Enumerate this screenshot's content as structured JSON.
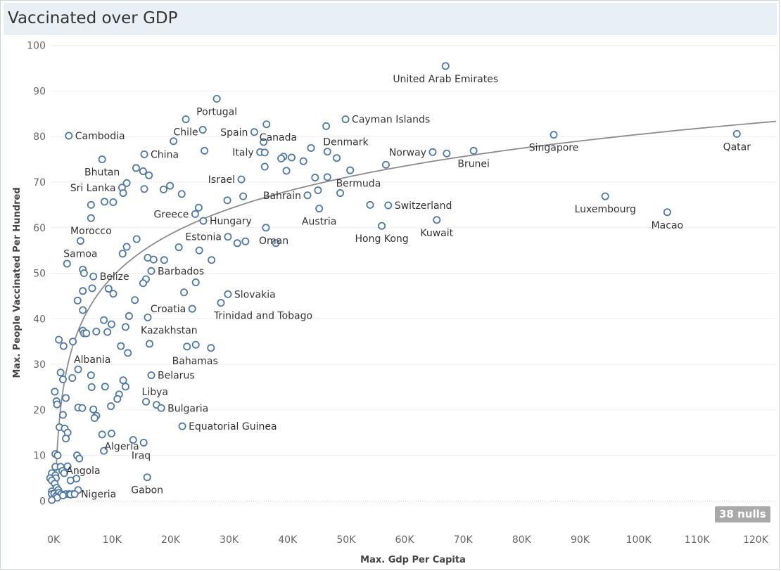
{
  "title": "Vaccinated over GDP",
  "nulls_badge": "38 nulls",
  "chart_data": {
    "type": "scatter",
    "xlabel": "Max. Gdp Per Capita",
    "ylabel": "Max. People Vaccinated Per Hundred",
    "xlim": [
      -500,
      123500
    ],
    "ylim": [
      -5.5,
      101.5
    ],
    "x_ticks": [
      0,
      10000,
      20000,
      30000,
      40000,
      50000,
      60000,
      70000,
      80000,
      90000,
      100000,
      110000,
      120000
    ],
    "x_tick_labels": [
      "0K",
      "10K",
      "20K",
      "30K",
      "40K",
      "50K",
      "60K",
      "70K",
      "80K",
      "90K",
      "100K",
      "110K",
      "120K"
    ],
    "y_ticks": [
      0,
      10,
      20,
      30,
      40,
      50,
      60,
      70,
      80,
      90,
      100
    ],
    "y_tick_labels": [
      "0",
      "10",
      "20",
      "30",
      "40",
      "50",
      "60",
      "70",
      "80",
      "90",
      "100"
    ],
    "trend_line": {
      "type": "logarithmic",
      "a": -76.1,
      "b": 13.6
    },
    "points": [
      {
        "x": 67000,
        "y": 95.5,
        "label": "United Arab Emirates",
        "label_pos": "below"
      },
      {
        "x": 116800,
        "y": 80.6,
        "label": "Qatar",
        "label_pos": "below"
      },
      {
        "x": 85500,
        "y": 80.4,
        "label": "Singapore",
        "label_pos": "below"
      },
      {
        "x": 71800,
        "y": 76.9,
        "label": "Brunei",
        "label_pos": "below"
      },
      {
        "x": 67200,
        "y": 76.3
      },
      {
        "x": 64800,
        "y": 76.6,
        "label": "Norway",
        "label_pos": "left"
      },
      {
        "x": 94300,
        "y": 66.9,
        "label": "Luxembourg",
        "label_pos": "below"
      },
      {
        "x": 104900,
        "y": 63.4,
        "label": "Macao",
        "label_pos": "below"
      },
      {
        "x": 57200,
        "y": 64.9,
        "label": "Switzerland",
        "label_pos": "right"
      },
      {
        "x": 65500,
        "y": 61.7,
        "label": "Kuwait",
        "label_pos": "below"
      },
      {
        "x": 56100,
        "y": 60.4,
        "label": "Hong Kong",
        "label_pos": "below"
      },
      {
        "x": 54100,
        "y": 65.0
      },
      {
        "x": 56800,
        "y": 73.8
      },
      {
        "x": 49900,
        "y": 83.8,
        "label": "Cayman Islands",
        "label_pos": "right"
      },
      {
        "x": 46600,
        "y": 82.3
      },
      {
        "x": 46800,
        "y": 76.7,
        "label": "Denmark",
        "label_pos": "above-right"
      },
      {
        "x": 48400,
        "y": 75.3
      },
      {
        "x": 50700,
        "y": 72.6
      },
      {
        "x": 46800,
        "y": 71.1
      },
      {
        "x": 44700,
        "y": 71.0
      },
      {
        "x": 49000,
        "y": 67.6,
        "label": "Bermuda",
        "label_pos": "above-right"
      },
      {
        "x": 45200,
        "y": 68.2
      },
      {
        "x": 43400,
        "y": 67.1,
        "label": "Bahrain",
        "label_pos": "left"
      },
      {
        "x": 45400,
        "y": 64.2,
        "label": "Austria",
        "label_pos": "below"
      },
      {
        "x": 44000,
        "y": 77.5
      },
      {
        "x": 42700,
        "y": 74.6
      },
      {
        "x": 40700,
        "y": 75.4
      },
      {
        "x": 39300,
        "y": 75.6
      },
      {
        "x": 38900,
        "y": 75.2
      },
      {
        "x": 39800,
        "y": 72.5
      },
      {
        "x": 36400,
        "y": 82.7,
        "label": "Canada",
        "label_pos": "below-right"
      },
      {
        "x": 34300,
        "y": 81.0,
        "label": "Spain",
        "label_pos": "left"
      },
      {
        "x": 35900,
        "y": 78.8
      },
      {
        "x": 35300,
        "y": 76.6,
        "label": "Italy",
        "label_pos": "left"
      },
      {
        "x": 36100,
        "y": 76.5
      },
      {
        "x": 36100,
        "y": 73.4
      },
      {
        "x": 32100,
        "y": 70.6,
        "label": "Israel",
        "label_pos": "left"
      },
      {
        "x": 32400,
        "y": 66.9
      },
      {
        "x": 29700,
        "y": 66.0
      },
      {
        "x": 36300,
        "y": 60.0,
        "label": "Oman",
        "label_pos": "below-right"
      },
      {
        "x": 38000,
        "y": 56.6
      },
      {
        "x": 32800,
        "y": 57.0
      },
      {
        "x": 31400,
        "y": 56.6
      },
      {
        "x": 29800,
        "y": 58.0,
        "label": "Estonia",
        "label_pos": "left"
      },
      {
        "x": 25600,
        "y": 61.5,
        "label": "Hungary",
        "label_pos": "right"
      },
      {
        "x": 27900,
        "y": 88.3,
        "label": "Portugal",
        "label_pos": "below"
      },
      {
        "x": 22600,
        "y": 83.8,
        "label": "Chile",
        "label_pos": "below"
      },
      {
        "x": 25500,
        "y": 81.5
      },
      {
        "x": 20500,
        "y": 79.0
      },
      {
        "x": 25800,
        "y": 76.9
      },
      {
        "x": 15500,
        "y": 76.1,
        "label": "China",
        "label_pos": "right"
      },
      {
        "x": 2600,
        "y": 80.2,
        "label": "Cambodia",
        "label_pos": "right"
      },
      {
        "x": 8300,
        "y": 75.0,
        "label": "Bhutan",
        "label_pos": "below"
      },
      {
        "x": 14100,
        "y": 73.1
      },
      {
        "x": 15300,
        "y": 72.4
      },
      {
        "x": 16300,
        "y": 71.5
      },
      {
        "x": 11700,
        "y": 68.8,
        "label": "Sri Lanka",
        "label_pos": "left"
      },
      {
        "x": 11900,
        "y": 67.6
      },
      {
        "x": 12500,
        "y": 69.8
      },
      {
        "x": 15500,
        "y": 68.5
      },
      {
        "x": 18800,
        "y": 68.4
      },
      {
        "x": 19900,
        "y": 69.2
      },
      {
        "x": 21900,
        "y": 67.4
      },
      {
        "x": 8700,
        "y": 65.7
      },
      {
        "x": 10200,
        "y": 65.6
      },
      {
        "x": 6400,
        "y": 65.0
      },
      {
        "x": 24800,
        "y": 64.4
      },
      {
        "x": 24200,
        "y": 63.0,
        "label": "Greece",
        "label_pos": "left"
      },
      {
        "x": 6400,
        "y": 62.1,
        "label": "Morocco",
        "label_pos": "below"
      },
      {
        "x": 4600,
        "y": 57.1,
        "label": "Samoa",
        "label_pos": "below"
      },
      {
        "x": 14200,
        "y": 57.5
      },
      {
        "x": 12500,
        "y": 55.8
      },
      {
        "x": 11800,
        "y": 54.3
      },
      {
        "x": 21400,
        "y": 55.7
      },
      {
        "x": 24900,
        "y": 55.0
      },
      {
        "x": 16100,
        "y": 53.4
      },
      {
        "x": 17100,
        "y": 53.0
      },
      {
        "x": 18900,
        "y": 52.9
      },
      {
        "x": 27000,
        "y": 52.9
      },
      {
        "x": 2300,
        "y": 52.1
      },
      {
        "x": 5000,
        "y": 50.8
      },
      {
        "x": 5200,
        "y": 50.0
      },
      {
        "x": 6800,
        "y": 49.3,
        "label": "Belize",
        "label_pos": "right"
      },
      {
        "x": 16700,
        "y": 50.5,
        "label": "Barbados",
        "label_pos": "right"
      },
      {
        "x": 15800,
        "y": 48.7
      },
      {
        "x": 15300,
        "y": 47.8
      },
      {
        "x": 24300,
        "y": 48.0
      },
      {
        "x": 6600,
        "y": 46.7
      },
      {
        "x": 5000,
        "y": 46.1
      },
      {
        "x": 9400,
        "y": 46.6
      },
      {
        "x": 10200,
        "y": 45.5
      },
      {
        "x": 22300,
        "y": 45.8
      },
      {
        "x": 29800,
        "y": 45.4,
        "label": "Slovakia",
        "label_pos": "right"
      },
      {
        "x": 28600,
        "y": 43.5,
        "label": "Trinidad and Tobago",
        "label_pos": "below-right"
      },
      {
        "x": 23700,
        "y": 42.2,
        "label": "Croatia",
        "label_pos": "left"
      },
      {
        "x": 4100,
        "y": 44.0
      },
      {
        "x": 13900,
        "y": 44.1
      },
      {
        "x": 5000,
        "y": 41.9
      },
      {
        "x": 16100,
        "y": 40.3,
        "label": "Kazakhstan",
        "label_pos": "below-right"
      },
      {
        "x": 12900,
        "y": 40.6
      },
      {
        "x": 8600,
        "y": 39.7
      },
      {
        "x": 9900,
        "y": 38.8
      },
      {
        "x": 12300,
        "y": 38.2
      },
      {
        "x": 5000,
        "y": 37.4
      },
      {
        "x": 7300,
        "y": 37.2
      },
      {
        "x": 5200,
        "y": 36.8
      },
      {
        "x": 5600,
        "y": 36.8
      },
      {
        "x": 9200,
        "y": 37.1
      },
      {
        "x": 900,
        "y": 35.4
      },
      {
        "x": 3300,
        "y": 35.0
      },
      {
        "x": 1700,
        "y": 34.0
      },
      {
        "x": 11500,
        "y": 34.0
      },
      {
        "x": 16400,
        "y": 34.5
      },
      {
        "x": 22800,
        "y": 33.9
      },
      {
        "x": 24300,
        "y": 34.3
      },
      {
        "x": 26900,
        "y": 33.6,
        "label": "Bahamas",
        "label_pos": "below-left"
      },
      {
        "x": 12700,
        "y": 32.5
      },
      {
        "x": 4200,
        "y": 28.9,
        "label": "Albania",
        "label_pos": "above-right"
      },
      {
        "x": 1200,
        "y": 28.2
      },
      {
        "x": 6400,
        "y": 27.6
      },
      {
        "x": 16700,
        "y": 27.6,
        "label": "Belarus",
        "label_pos": "right"
      },
      {
        "x": 3200,
        "y": 27.0
      },
      {
        "x": 1600,
        "y": 26.7
      },
      {
        "x": 11900,
        "y": 26.5
      },
      {
        "x": 12300,
        "y": 25.1
      },
      {
        "x": 6500,
        "y": 25.0
      },
      {
        "x": 8800,
        "y": 25.1
      },
      {
        "x": 200,
        "y": 24.0
      },
      {
        "x": 11200,
        "y": 23.4
      },
      {
        "x": 2100,
        "y": 22.6
      },
      {
        "x": 10900,
        "y": 22.4
      },
      {
        "x": 500,
        "y": 21.9
      },
      {
        "x": 600,
        "y": 21.2
      },
      {
        "x": 15800,
        "y": 21.8,
        "label": "Libya",
        "label_pos": "above-right"
      },
      {
        "x": 17600,
        "y": 21.1
      },
      {
        "x": 18400,
        "y": 20.4,
        "label": "Bulgaria",
        "label_pos": "right"
      },
      {
        "x": 4200,
        "y": 20.5
      },
      {
        "x": 4900,
        "y": 20.4
      },
      {
        "x": 9800,
        "y": 20.8
      },
      {
        "x": 6800,
        "y": 20.1
      },
      {
        "x": 7300,
        "y": 18.7
      },
      {
        "x": 7000,
        "y": 18.2
      },
      {
        "x": 1600,
        "y": 18.9
      },
      {
        "x": 22000,
        "y": 16.4,
        "label": "Equatorial Guinea",
        "label_pos": "right"
      },
      {
        "x": 1000,
        "y": 16.2
      },
      {
        "x": 1900,
        "y": 15.9
      },
      {
        "x": 2400,
        "y": 15.0
      },
      {
        "x": 8300,
        "y": 14.6
      },
      {
        "x": 9900,
        "y": 14.8,
        "label": "Algeria",
        "label_pos": "below-right"
      },
      {
        "x": 2100,
        "y": 13.7
      },
      {
        "x": 13600,
        "y": 13.4
      },
      {
        "x": 15400,
        "y": 12.8,
        "label": "Iraq",
        "label_pos": "below-left"
      },
      {
        "x": 8600,
        "y": 11.0
      },
      {
        "x": 300,
        "y": 10.3
      },
      {
        "x": 700,
        "y": 10.0
      },
      {
        "x": 4000,
        "y": 10.0
      },
      {
        "x": 4400,
        "y": 9.3
      },
      {
        "x": 300,
        "y": 7.5
      },
      {
        "x": 1200,
        "y": 7.5
      },
      {
        "x": 2400,
        "y": 7.6
      },
      {
        "x": 1500,
        "y": 6.6
      },
      {
        "x": 1800,
        "y": 6.1
      },
      {
        "x": -300,
        "y": 6.1
      },
      {
        "x": -600,
        "y": 5.0
      },
      {
        "x": 300,
        "y": 5.6
      },
      {
        "x": 400,
        "y": 5.0
      },
      {
        "x": 3900,
        "y": 4.9
      },
      {
        "x": 2900,
        "y": 4.5,
        "label": "Angola",
        "label_pos": "above-right"
      },
      {
        "x": -300,
        "y": 4.5
      },
      {
        "x": 200,
        "y": 3.8
      },
      {
        "x": 500,
        "y": 2.9
      },
      {
        "x": 800,
        "y": 2.4
      },
      {
        "x": -300,
        "y": 2.1
      },
      {
        "x": 4200,
        "y": 2.4
      },
      {
        "x": 16000,
        "y": 5.2,
        "label": "Gabon",
        "label_pos": "below"
      },
      {
        "x": -300,
        "y": 1.5
      },
      {
        "x": 100,
        "y": 1.6
      },
      {
        "x": 600,
        "y": 1.3
      },
      {
        "x": 900,
        "y": 1.8
      },
      {
        "x": 1300,
        "y": 1.5
      },
      {
        "x": 2100,
        "y": 1.5
      },
      {
        "x": 2700,
        "y": 1.5
      },
      {
        "x": 3300,
        "y": 1.5
      },
      {
        "x": 2900,
        "y": 1.4
      },
      {
        "x": 400,
        "y": 1.0
      },
      {
        "x": 600,
        "y": 0.7
      },
      {
        "x": 1600,
        "y": 1.2
      },
      {
        "x": 3600,
        "y": 1.5,
        "label": "Nigeria",
        "label_pos": "right"
      },
      {
        "x": -300,
        "y": 0.2
      }
    ]
  }
}
